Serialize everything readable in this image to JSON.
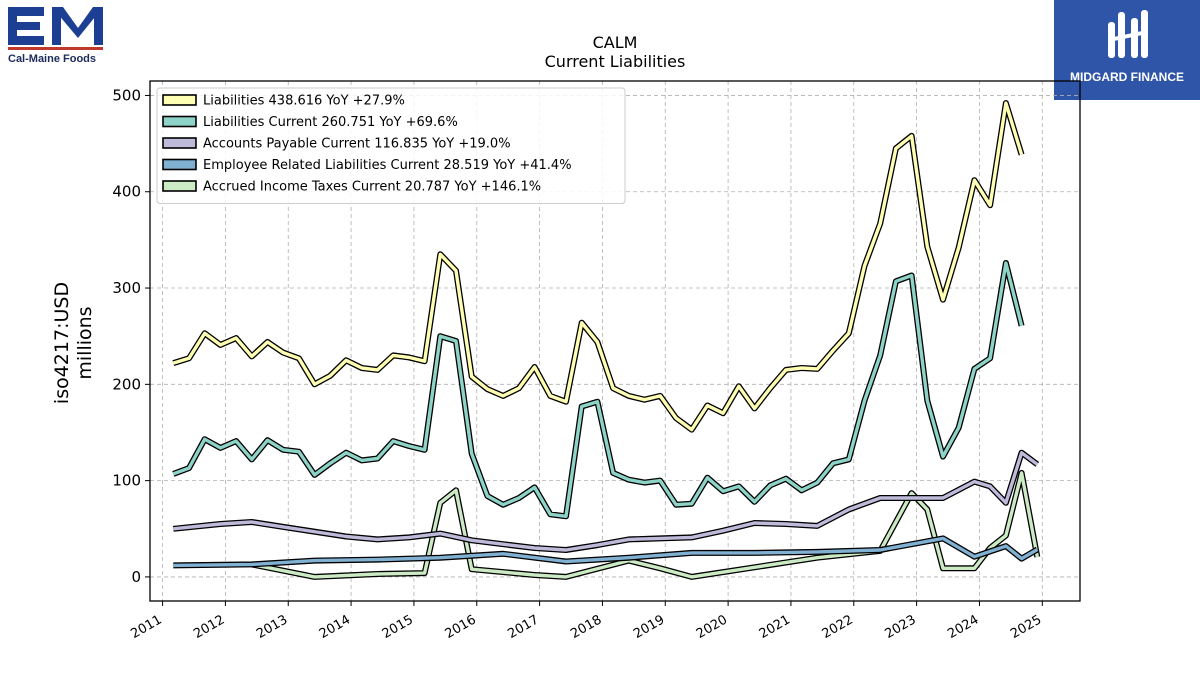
{
  "logos": {
    "left": {
      "name": "Cal-Maine Foods",
      "color": "#1c3f94"
    },
    "right": {
      "name": "MIDGARD FINANCE",
      "color": "#2e55a8"
    }
  },
  "chart_data": {
    "type": "line",
    "title": "CALM",
    "subtitle": "Current  Liabilities",
    "ylabel": "iso4217:USD",
    "ylabel2": "millions",
    "ylim": [
      -25,
      515
    ],
    "xlim": [
      2010.8,
      2025.6
    ],
    "yticks": [
      0,
      100,
      200,
      300,
      400,
      500
    ],
    "xticks": [
      2011,
      2012,
      2013,
      2014,
      2015,
      2016,
      2017,
      2018,
      2019,
      2020,
      2021,
      2022,
      2023,
      2024,
      2025
    ],
    "grid": true,
    "legend_position": "top-left",
    "series": [
      {
        "name": "Liabilities  438.616 YoY +27.9%",
        "color": "#ffffb3",
        "points": [
          [
            2011.17,
            222
          ],
          [
            2011.42,
            227
          ],
          [
            2011.67,
            253
          ],
          [
            2011.92,
            241
          ],
          [
            2012.17,
            248
          ],
          [
            2012.42,
            229
          ],
          [
            2012.67,
            244
          ],
          [
            2012.92,
            233
          ],
          [
            2013.17,
            227
          ],
          [
            2013.42,
            200
          ],
          [
            2013.67,
            209
          ],
          [
            2013.92,
            225
          ],
          [
            2014.17,
            217
          ],
          [
            2014.42,
            215
          ],
          [
            2014.67,
            230
          ],
          [
            2014.92,
            228
          ],
          [
            2015.17,
            224
          ],
          [
            2015.42,
            335
          ],
          [
            2015.67,
            318
          ],
          [
            2015.92,
            208
          ],
          [
            2016.17,
            195
          ],
          [
            2016.42,
            188
          ],
          [
            2016.67,
            196
          ],
          [
            2016.92,
            218
          ],
          [
            2017.17,
            188
          ],
          [
            2017.42,
            182
          ],
          [
            2017.67,
            264
          ],
          [
            2017.92,
            244
          ],
          [
            2018.17,
            196
          ],
          [
            2018.42,
            188
          ],
          [
            2018.67,
            184
          ],
          [
            2018.92,
            188
          ],
          [
            2019.17,
            165
          ],
          [
            2019.42,
            153
          ],
          [
            2019.67,
            178
          ],
          [
            2019.92,
            170
          ],
          [
            2020.17,
            198
          ],
          [
            2020.42,
            175
          ],
          [
            2020.67,
            196
          ],
          [
            2020.92,
            215
          ],
          [
            2021.17,
            217
          ],
          [
            2021.42,
            216
          ],
          [
            2021.67,
            235
          ],
          [
            2021.92,
            253
          ],
          [
            2022.17,
            323
          ],
          [
            2022.42,
            367
          ],
          [
            2022.67,
            445
          ],
          [
            2022.92,
            458
          ],
          [
            2023.17,
            343
          ],
          [
            2023.42,
            288
          ],
          [
            2023.67,
            342
          ],
          [
            2023.92,
            412
          ],
          [
            2024.17,
            386
          ],
          [
            2024.42,
            492
          ],
          [
            2024.67,
            438.616
          ]
        ]
      },
      {
        "name": "Liabilities Current  260.751 YoY +69.6%",
        "color": "#8dd3c7",
        "points": [
          [
            2011.17,
            107
          ],
          [
            2011.42,
            113
          ],
          [
            2011.67,
            143
          ],
          [
            2011.92,
            134
          ],
          [
            2012.17,
            141
          ],
          [
            2012.42,
            122
          ],
          [
            2012.67,
            142
          ],
          [
            2012.92,
            132
          ],
          [
            2013.17,
            130
          ],
          [
            2013.42,
            106
          ],
          [
            2013.67,
            118
          ],
          [
            2013.92,
            129
          ],
          [
            2014.17,
            121
          ],
          [
            2014.42,
            123
          ],
          [
            2014.67,
            141
          ],
          [
            2014.92,
            136
          ],
          [
            2015.17,
            132
          ],
          [
            2015.42,
            250
          ],
          [
            2015.67,
            245
          ],
          [
            2015.92,
            128
          ],
          [
            2016.17,
            84
          ],
          [
            2016.42,
            75
          ],
          [
            2016.67,
            82
          ],
          [
            2016.92,
            93
          ],
          [
            2017.17,
            65
          ],
          [
            2017.42,
            63
          ],
          [
            2017.67,
            177
          ],
          [
            2017.92,
            182
          ],
          [
            2018.17,
            108
          ],
          [
            2018.42,
            101
          ],
          [
            2018.67,
            98
          ],
          [
            2018.92,
            100
          ],
          [
            2019.17,
            75
          ],
          [
            2019.42,
            76
          ],
          [
            2019.67,
            103
          ],
          [
            2019.92,
            89
          ],
          [
            2020.17,
            94
          ],
          [
            2020.42,
            78
          ],
          [
            2020.67,
            95
          ],
          [
            2020.92,
            102
          ],
          [
            2021.17,
            90
          ],
          [
            2021.42,
            98
          ],
          [
            2021.67,
            118
          ],
          [
            2021.92,
            122
          ],
          [
            2022.17,
            183
          ],
          [
            2022.42,
            230
          ],
          [
            2022.67,
            307
          ],
          [
            2022.92,
            313
          ],
          [
            2023.17,
            183
          ],
          [
            2023.42,
            125
          ],
          [
            2023.67,
            155
          ],
          [
            2023.92,
            216
          ],
          [
            2024.17,
            227
          ],
          [
            2024.42,
            326
          ],
          [
            2024.67,
            260.751
          ]
        ]
      },
      {
        "name": "Accounts Payable Current  116.835 YoY +19.0%",
        "color": "#bebada",
        "points": [
          [
            2011.17,
            50
          ],
          [
            2011.92,
            55
          ],
          [
            2012.42,
            57
          ],
          [
            2012.92,
            52
          ],
          [
            2013.92,
            42
          ],
          [
            2014.42,
            39
          ],
          [
            2014.92,
            41
          ],
          [
            2015.42,
            45
          ],
          [
            2015.92,
            38
          ],
          [
            2016.42,
            34
          ],
          [
            2016.92,
            30
          ],
          [
            2017.42,
            28
          ],
          [
            2017.92,
            33
          ],
          [
            2018.42,
            39
          ],
          [
            2018.92,
            40
          ],
          [
            2019.42,
            41
          ],
          [
            2019.92,
            48
          ],
          [
            2020.42,
            56
          ],
          [
            2020.92,
            55
          ],
          [
            2021.42,
            53
          ],
          [
            2021.92,
            70
          ],
          [
            2022.42,
            82
          ],
          [
            2022.92,
            82
          ],
          [
            2023.42,
            82
          ],
          [
            2023.92,
            99
          ],
          [
            2024.17,
            94
          ],
          [
            2024.42,
            77
          ],
          [
            2024.67,
            129
          ],
          [
            2024.92,
            116.835
          ]
        ]
      },
      {
        "name": "Employee Related Liabilities Current  28.519 YoY +41.4%",
        "color": "#80b1d3",
        "points": [
          [
            2011.17,
            12
          ],
          [
            2012.42,
            13
          ],
          [
            2013.42,
            17
          ],
          [
            2014.42,
            18
          ],
          [
            2015.42,
            20
          ],
          [
            2016.42,
            24
          ],
          [
            2017.42,
            16
          ],
          [
            2018.42,
            20
          ],
          [
            2019.42,
            25
          ],
          [
            2020.42,
            25
          ],
          [
            2021.42,
            26
          ],
          [
            2022.42,
            28
          ],
          [
            2023.42,
            40
          ],
          [
            2023.92,
            21
          ],
          [
            2024.42,
            32
          ],
          [
            2024.67,
            19
          ],
          [
            2024.92,
            28.519
          ]
        ]
      },
      {
        "name": "Accrued Income Taxes Current  20.787 YoY +146.1%",
        "color": "#ccebc5",
        "points": [
          [
            2012.42,
            13
          ],
          [
            2013.42,
            0
          ],
          [
            2014.42,
            3
          ],
          [
            2015.17,
            4
          ],
          [
            2015.42,
            77
          ],
          [
            2015.67,
            90
          ],
          [
            2015.92,
            8
          ],
          [
            2016.92,
            2
          ],
          [
            2017.42,
            0
          ],
          [
            2018.42,
            17
          ],
          [
            2018.92,
            9
          ],
          [
            2019.42,
            0
          ],
          [
            2020.42,
            10
          ],
          [
            2021.42,
            20
          ],
          [
            2022.42,
            27
          ],
          [
            2022.92,
            87
          ],
          [
            2023.17,
            70
          ],
          [
            2023.42,
            9
          ],
          [
            2023.92,
            9
          ],
          [
            2024.17,
            30
          ],
          [
            2024.42,
            43
          ],
          [
            2024.67,
            108
          ],
          [
            2024.92,
            20.787
          ]
        ]
      }
    ]
  }
}
